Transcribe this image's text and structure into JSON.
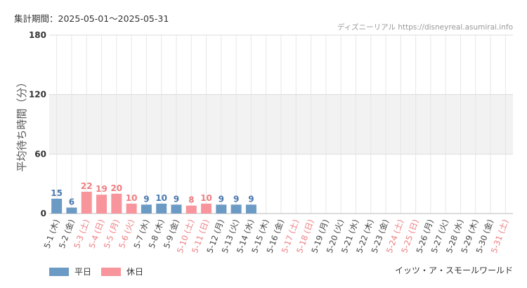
{
  "header": {
    "period_label": "集計期間：",
    "period_value": "2025-05-01〜2025-05-31",
    "site_credit": "ディズニーリアル https://disneyreal.asumirai.info"
  },
  "footer": {
    "attraction": "イッツ・ア・スモールワールド"
  },
  "legend": [
    {
      "label": "平日",
      "color": "#6b9ac4"
    },
    {
      "label": "休日",
      "color": "#f8949b"
    }
  ],
  "colors": {
    "weekday": "#6b9ac4",
    "holiday": "#f8949b",
    "weekday_label": "#4a78b0",
    "holiday_label": "#ee7d80",
    "weekday_tick": "#444444",
    "holiday_tick": "#ee7d80",
    "band": "#f2f2f2",
    "grid": "#e6e6e6"
  },
  "chart_data": {
    "type": "bar",
    "ylabel": "平均待ち時間（分）",
    "ylim": [
      0,
      180
    ],
    "yticks": [
      0,
      60,
      120,
      180
    ],
    "shaded_band": [
      60,
      120
    ],
    "grid": true,
    "legend_position": "bottom-left",
    "categories": [
      "5-1 (木)",
      "5-2 (金)",
      "5-3 (土)",
      "5-4 (日)",
      "5-5 (月)",
      "5-6 (火)",
      "5-7 (水)",
      "5-8 (木)",
      "5-9 (金)",
      "5-10 (土)",
      "5-11 (日)",
      "5-12 (月)",
      "5-13 (火)",
      "5-14 (水)",
      "5-15 (木)",
      "5-16 (金)",
      "5-17 (土)",
      "5-18 (日)",
      "5-19 (月)",
      "5-20 (火)",
      "5-21 (水)",
      "5-22 (木)",
      "5-23 (金)",
      "5-24 (土)",
      "5-25 (日)",
      "5-26 (月)",
      "5-27 (火)",
      "5-28 (水)",
      "5-29 (木)",
      "5-30 (金)",
      "5-31 (土)"
    ],
    "day_type": [
      "weekday",
      "weekday",
      "holiday",
      "holiday",
      "holiday",
      "holiday",
      "weekday",
      "weekday",
      "weekday",
      "holiday",
      "holiday",
      "weekday",
      "weekday",
      "weekday",
      "weekday",
      "weekday",
      "holiday",
      "holiday",
      "weekday",
      "weekday",
      "weekday",
      "weekday",
      "weekday",
      "holiday",
      "holiday",
      "weekday",
      "weekday",
      "weekday",
      "weekday",
      "weekday",
      "holiday"
    ],
    "values": [
      15,
      6,
      22,
      19,
      20,
      10,
      9,
      10,
      9,
      8,
      10,
      9,
      9,
      9,
      null,
      null,
      null,
      null,
      null,
      null,
      null,
      null,
      null,
      null,
      null,
      null,
      null,
      null,
      null,
      null,
      null
    ]
  }
}
